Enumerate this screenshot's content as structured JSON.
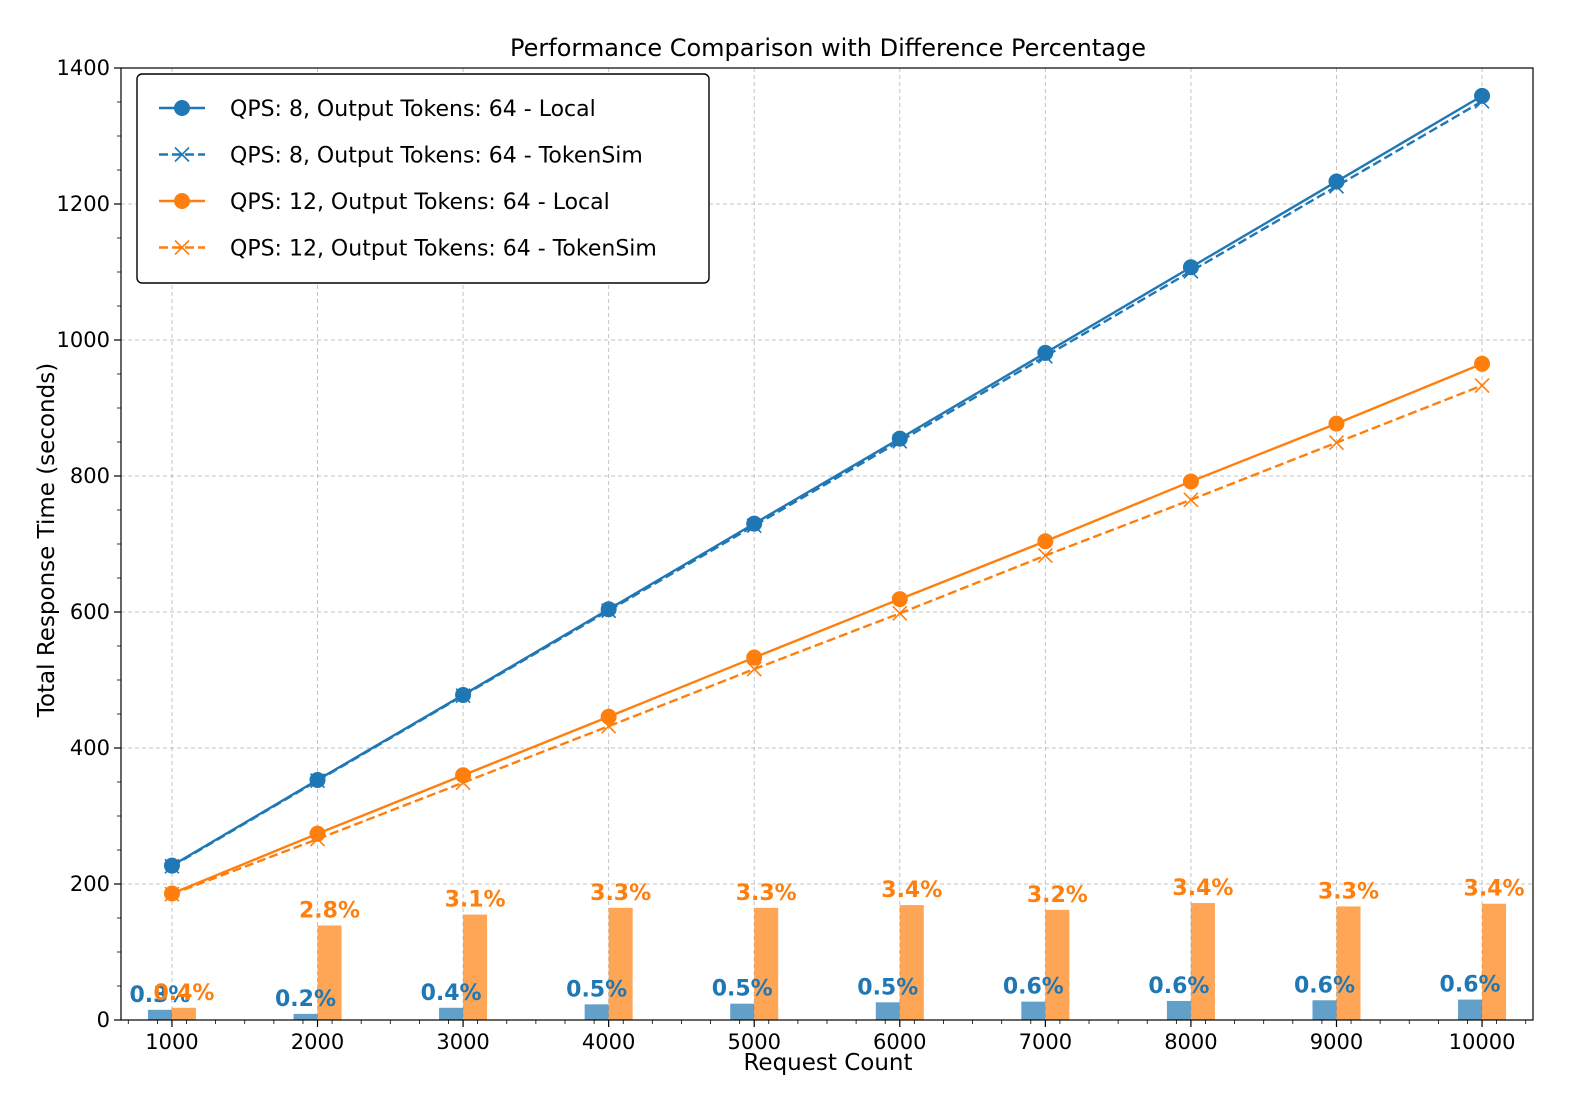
{
  "chart_data": {
    "type": "line",
    "title": "Performance Comparison with Difference Percentage",
    "xlabel": "Request Count",
    "ylabel": "Total Response Time (seconds)",
    "ylim": [
      0,
      1400
    ],
    "xlim": [
      650,
      10350
    ],
    "grid": true,
    "legend_position": "top-left",
    "x": [
      1000,
      2000,
      3000,
      4000,
      5000,
      6000,
      7000,
      8000,
      9000,
      10000
    ],
    "x_tick_labels": [
      "1000",
      "2000",
      "3000",
      "4000",
      "5000",
      "6000",
      "7000",
      "8000",
      "9000",
      "10000"
    ],
    "y_ticks": [
      0,
      200,
      400,
      600,
      800,
      1000,
      1200,
      1400
    ],
    "y_tick_labels": [
      "0",
      "200",
      "400",
      "600",
      "800",
      "1000",
      "1200",
      "1400"
    ],
    "series": [
      {
        "name": "QPS: 8, Output Tokens: 64 - Local",
        "color": "#1f77b4",
        "marker": "circle",
        "linestyle": "solid",
        "values": [
          227,
          353,
          478,
          604,
          730,
          855,
          981,
          1107,
          1233,
          1359
        ]
      },
      {
        "name": "QPS: 8, Output Tokens: 64 - TokenSim",
        "color": "#1f77b4",
        "marker": "x",
        "linestyle": "dashed",
        "values": [
          226,
          352,
          477,
          602,
          727,
          851,
          976,
          1101,
          1226,
          1351
        ]
      },
      {
        "name": "QPS: 12, Output Tokens: 64 - Local",
        "color": "#ff7f0e",
        "marker": "circle",
        "linestyle": "solid",
        "values": [
          186,
          274,
          360,
          446,
          533,
          619,
          704,
          792,
          877,
          965
        ]
      },
      {
        "name": "QPS: 12, Output Tokens: 64 - TokenSim",
        "color": "#ff7f0e",
        "marker": "x",
        "linestyle": "dashed",
        "values": [
          185,
          266,
          349,
          432,
          516,
          598,
          683,
          765,
          849,
          933
        ]
      }
    ],
    "difference_bars": [
      {
        "name": "QPS 8 difference",
        "color": "#1f77b4",
        "bar_values": [
          15,
          9,
          18,
          23,
          24,
          26,
          27,
          28,
          29,
          30
        ],
        "labels": [
          "0.3%",
          "0.2%",
          "0.4%",
          "0.5%",
          "0.5%",
          "0.5%",
          "0.6%",
          "0.6%",
          "0.6%",
          "0.6%"
        ]
      },
      {
        "name": "QPS 12 difference",
        "color": "#ff7f0e",
        "bar_values": [
          18,
          139,
          155,
          165,
          165,
          169,
          162,
          172,
          167,
          171
        ],
        "labels": [
          "0.4%",
          "2.8%",
          "3.1%",
          "3.3%",
          "3.3%",
          "3.4%",
          "3.2%",
          "3.4%",
          "3.3%",
          "3.4%"
        ]
      }
    ]
  }
}
